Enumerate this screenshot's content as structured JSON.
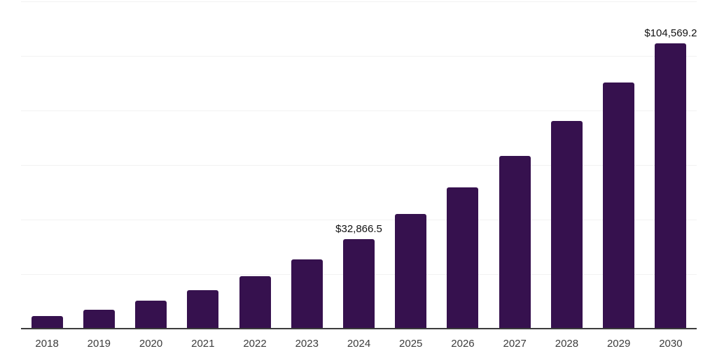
{
  "chart_data": {
    "type": "bar",
    "title": "",
    "xlabel": "",
    "ylabel": "",
    "categories": [
      "2018",
      "2019",
      "2020",
      "2021",
      "2022",
      "2023",
      "2024",
      "2025",
      "2026",
      "2027",
      "2028",
      "2029",
      "2030"
    ],
    "values": [
      4550,
      6850,
      10350,
      14100,
      19200,
      25350,
      32866.5,
      42050,
      51850,
      63250,
      76200,
      90150,
      104569.2
    ],
    "data_labels": [
      {
        "category": "2024",
        "text": "$32,866.5"
      },
      {
        "category": "2030",
        "text": "$104,569.2"
      }
    ],
    "ylim": [
      0,
      120000
    ],
    "gridline_step": 20000,
    "grid": true,
    "legend_position": "none",
    "colors": {
      "bar": "#36114E",
      "axis_line": "#3C3C3C",
      "gridline": "#F2F2F2",
      "x_tick_label": "#3C3C3C",
      "data_label": "#111111",
      "background": "#FFFFFF"
    }
  }
}
